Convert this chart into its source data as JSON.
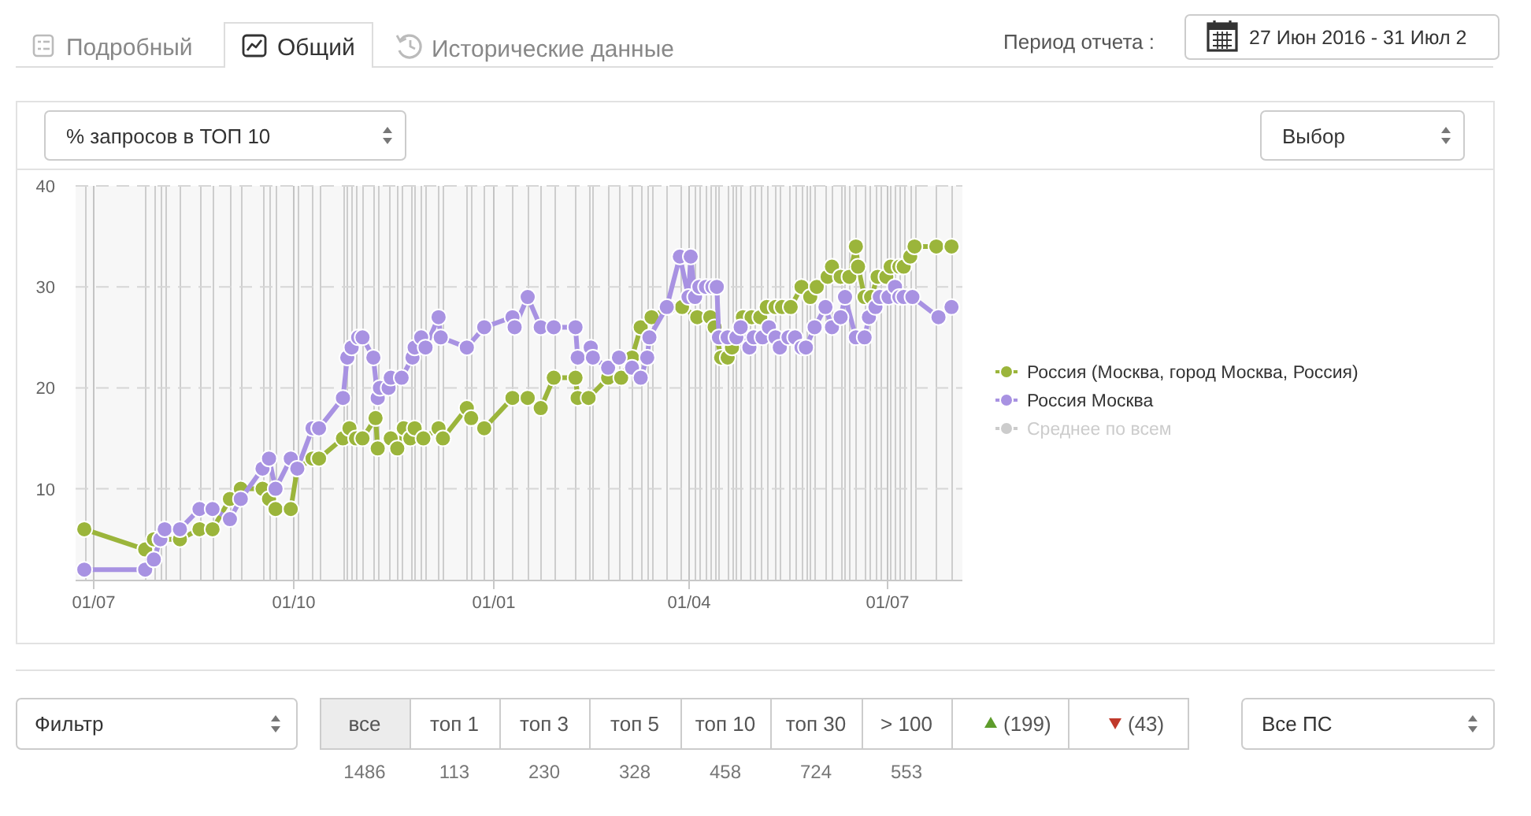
{
  "chart_data": {
    "type": "line",
    "annotations": [
      "Подробный",
      "Общий",
      "Исторические данные",
      "Период отчета :",
      "27 Июн 2016 - 31 Июл 2",
      "% запросов в ТОП 10",
      "Выбор",
      "Фильтр",
      "все",
      "топ 1",
      "топ 3",
      "топ 5",
      "топ 10",
      "топ 30",
      "> 100",
      "(199)",
      "(43)",
      "1486",
      "113",
      "230",
      "328",
      "458",
      "724",
      "553",
      "Все ПС"
    ],
    "xlim": [
      "2016-06-23",
      "2017-08-05"
    ],
    "xticks": [
      {
        "value": "2016-07-01",
        "label": "01/07"
      },
      {
        "value": "2016-10-01",
        "label": "01/10"
      },
      {
        "value": "2017-01-01",
        "label": "01/01"
      },
      {
        "value": "2017-04-01",
        "label": "01/04"
      },
      {
        "value": "2017-07-01",
        "label": "01/07"
      }
    ],
    "ylim": [
      1,
      40
    ],
    "yticks": [
      10,
      20,
      30,
      40
    ],
    "grid": true,
    "legend": "right",
    "marker": "circle",
    "line_style": "solid",
    "series": [
      {
        "name": "Россия (Москва, город Москва, Россия)",
        "color": "#9bb53b",
        "x": [
          "2016-06-27",
          "2016-07-25",
          "2016-07-29",
          "2016-08-01",
          "2016-08-10",
          "2016-08-19",
          "2016-08-25",
          "2016-09-02",
          "2016-09-07",
          "2016-09-17",
          "2016-09-20",
          "2016-09-23",
          "2016-09-30",
          "2016-10-03",
          "2016-10-10",
          "2016-10-13",
          "2016-10-24",
          "2016-10-27",
          "2016-10-30",
          "2016-11-02",
          "2016-11-08",
          "2016-11-09",
          "2016-11-15",
          "2016-11-18",
          "2016-11-21",
          "2016-11-24",
          "2016-11-26",
          "2016-11-30",
          "2016-12-07",
          "2016-12-09",
          "2016-12-20",
          "2016-12-22",
          "2016-12-28",
          "2017-01-10",
          "2017-01-17",
          "2017-01-23",
          "2017-01-29",
          "2017-02-08",
          "2017-02-09",
          "2017-02-14",
          "2017-02-23",
          "2017-03-01",
          "2017-03-06",
          "2017-03-10",
          "2017-03-15",
          "2017-03-23",
          "2017-03-29",
          "2017-04-05",
          "2017-04-11",
          "2017-04-13",
          "2017-04-16",
          "2017-04-19",
          "2017-04-21",
          "2017-04-26",
          "2017-04-30",
          "2017-05-04",
          "2017-05-07",
          "2017-05-11",
          "2017-05-14",
          "2017-05-18",
          "2017-05-23",
          "2017-05-27",
          "2017-05-30",
          "2017-06-04",
          "2017-06-06",
          "2017-06-10",
          "2017-06-14",
          "2017-06-17",
          "2017-06-18",
          "2017-06-21",
          "2017-06-24",
          "2017-06-27",
          "2017-07-01",
          "2017-07-03",
          "2017-07-07",
          "2017-07-09",
          "2017-07-12",
          "2017-07-14",
          "2017-07-24",
          "2017-07-31"
        ],
        "values": [
          6,
          4,
          5,
          5,
          5,
          6,
          6,
          9,
          10,
          10,
          9,
          8,
          8,
          12,
          13,
          13,
          15,
          16,
          15,
          15,
          17,
          14,
          15,
          14,
          16,
          15,
          16,
          15,
          16,
          15,
          18,
          17,
          16,
          19,
          19,
          18,
          21,
          21,
          19,
          19,
          21,
          21,
          23,
          26,
          27,
          28,
          28,
          27,
          27,
          26,
          23,
          23,
          24,
          27,
          27,
          27,
          28,
          28,
          28,
          28,
          30,
          29,
          30,
          31,
          32,
          31,
          31,
          34,
          32,
          29,
          29,
          31,
          31,
          32,
          32,
          32,
          33,
          34,
          34,
          34
        ]
      },
      {
        "name": "Россия Москва",
        "color": "#a892e2",
        "x": [
          "2016-06-27",
          "2016-07-25",
          "2016-07-29",
          "2016-08-01",
          "2016-08-03",
          "2016-08-10",
          "2016-08-19",
          "2016-08-25",
          "2016-09-02",
          "2016-09-07",
          "2016-09-17",
          "2016-09-20",
          "2016-09-23",
          "2016-09-30",
          "2016-10-03",
          "2016-10-10",
          "2016-10-13",
          "2016-10-24",
          "2016-10-26",
          "2016-10-28",
          "2016-10-31",
          "2016-11-02",
          "2016-11-07",
          "2016-11-09",
          "2016-11-10",
          "2016-11-14",
          "2016-11-15",
          "2016-11-20",
          "2016-11-25",
          "2016-11-26",
          "2016-11-29",
          "2016-12-01",
          "2016-12-07",
          "2016-12-08",
          "2016-12-20",
          "2016-12-28",
          "2017-01-10",
          "2017-01-11",
          "2017-01-17",
          "2017-01-23",
          "2017-01-29",
          "2017-02-08",
          "2017-02-09",
          "2017-02-15",
          "2017-02-16",
          "2017-02-23",
          "2017-02-28",
          "2017-03-06",
          "2017-03-10",
          "2017-03-13",
          "2017-03-14",
          "2017-03-22",
          "2017-03-28",
          "2017-04-01",
          "2017-04-02",
          "2017-04-04",
          "2017-04-06",
          "2017-04-09",
          "2017-04-12",
          "2017-04-14",
          "2017-04-15",
          "2017-04-19",
          "2017-04-23",
          "2017-04-25",
          "2017-04-29",
          "2017-05-01",
          "2017-05-05",
          "2017-05-08",
          "2017-05-11",
          "2017-05-13",
          "2017-05-17",
          "2017-05-20",
          "2017-05-23",
          "2017-05-25",
          "2017-05-29",
          "2017-06-03",
          "2017-06-06",
          "2017-06-10",
          "2017-06-12",
          "2017-06-17",
          "2017-06-21",
          "2017-06-23",
          "2017-06-26",
          "2017-06-28",
          "2017-07-02",
          "2017-07-05",
          "2017-07-07",
          "2017-07-09",
          "2017-07-13",
          "2017-07-25",
          "2017-07-31"
        ],
        "values": [
          2,
          2,
          3,
          5,
          6,
          6,
          8,
          8,
          7,
          9,
          12,
          13,
          10,
          13,
          12,
          16,
          16,
          19,
          23,
          24,
          25,
          25,
          23,
          19,
          20,
          20,
          21,
          21,
          23,
          24,
          25,
          24,
          27,
          25,
          24,
          26,
          27,
          26,
          29,
          26,
          26,
          26,
          23,
          24,
          23,
          22,
          23,
          22,
          21,
          23,
          25,
          28,
          33,
          29,
          33,
          29,
          30,
          30,
          30,
          30,
          25,
          25,
          25,
          26,
          24,
          25,
          25,
          26,
          25,
          24,
          25,
          25,
          24,
          24,
          26,
          28,
          26,
          27,
          29,
          25,
          25,
          27,
          28,
          29,
          29,
          30,
          29,
          29,
          29,
          27,
          28
        ]
      },
      {
        "name": "Среднее по всем",
        "color": "#cccccc"
      }
    ],
    "ref_lines": [
      {
        "axis": "x",
        "value": "2016-06-27"
      },
      {
        "axis": "x",
        "value": "2016-07-25"
      },
      {
        "axis": "x",
        "value": "2016-07-29"
      },
      {
        "axis": "x",
        "value": "2016-08-01"
      },
      {
        "axis": "x",
        "value": "2016-08-03"
      },
      {
        "axis": "x",
        "value": "2016-08-10"
      },
      {
        "axis": "x",
        "value": "2016-08-19"
      },
      {
        "axis": "x",
        "value": "2016-08-25"
      },
      {
        "axis": "x",
        "value": "2016-09-02"
      },
      {
        "axis": "x",
        "value": "2016-09-07"
      },
      {
        "axis": "x",
        "value": "2016-09-17"
      },
      {
        "axis": "x",
        "value": "2016-09-20"
      },
      {
        "axis": "x",
        "value": "2016-09-23"
      },
      {
        "axis": "x",
        "value": "2016-10-03"
      },
      {
        "axis": "x",
        "value": "2016-10-10"
      },
      {
        "axis": "x",
        "value": "2016-10-13"
      },
      {
        "axis": "x",
        "value": "2016-10-24"
      },
      {
        "axis": "x",
        "value": "2016-10-26"
      },
      {
        "axis": "x",
        "value": "2016-10-28"
      },
      {
        "axis": "x",
        "value": "2016-10-30"
      },
      {
        "axis": "x",
        "value": "2016-11-02"
      },
      {
        "axis": "x",
        "value": "2016-11-07"
      },
      {
        "axis": "x",
        "value": "2016-11-09"
      },
      {
        "axis": "x",
        "value": "2016-11-14"
      },
      {
        "axis": "x",
        "value": "2016-11-18"
      },
      {
        "axis": "x",
        "value": "2016-11-20"
      },
      {
        "axis": "x",
        "value": "2016-11-24"
      },
      {
        "axis": "x",
        "value": "2016-11-26"
      },
      {
        "axis": "x",
        "value": "2016-11-29"
      },
      {
        "axis": "x",
        "value": "2016-12-01"
      },
      {
        "axis": "x",
        "value": "2016-12-07"
      },
      {
        "axis": "x",
        "value": "2016-12-09"
      },
      {
        "axis": "x",
        "value": "2016-12-20"
      },
      {
        "axis": "x",
        "value": "2016-12-22"
      },
      {
        "axis": "x",
        "value": "2016-12-28"
      },
      {
        "axis": "x",
        "value": "2017-01-10"
      },
      {
        "axis": "x",
        "value": "2017-01-17"
      },
      {
        "axis": "x",
        "value": "2017-01-23"
      },
      {
        "axis": "x",
        "value": "2017-01-29"
      },
      {
        "axis": "x",
        "value": "2017-02-08"
      },
      {
        "axis": "x",
        "value": "2017-02-14"
      },
      {
        "axis": "x",
        "value": "2017-02-16"
      },
      {
        "axis": "x",
        "value": "2017-02-23"
      },
      {
        "axis": "x",
        "value": "2017-02-28"
      },
      {
        "axis": "x",
        "value": "2017-03-06"
      },
      {
        "axis": "x",
        "value": "2017-03-10"
      },
      {
        "axis": "x",
        "value": "2017-03-13"
      },
      {
        "axis": "x",
        "value": "2017-03-15"
      },
      {
        "axis": "x",
        "value": "2017-03-22"
      },
      {
        "axis": "x",
        "value": "2017-03-28"
      },
      {
        "axis": "x",
        "value": "2017-04-04"
      },
      {
        "axis": "x",
        "value": "2017-04-06"
      },
      {
        "axis": "x",
        "value": "2017-04-09"
      },
      {
        "axis": "x",
        "value": "2017-04-11"
      },
      {
        "axis": "x",
        "value": "2017-04-13"
      },
      {
        "axis": "x",
        "value": "2017-04-15"
      },
      {
        "axis": "x",
        "value": "2017-04-19"
      },
      {
        "axis": "x",
        "value": "2017-04-21"
      },
      {
        "axis": "x",
        "value": "2017-04-23"
      },
      {
        "axis": "x",
        "value": "2017-04-25"
      },
      {
        "axis": "x",
        "value": "2017-04-29"
      },
      {
        "axis": "x",
        "value": "2017-05-01"
      },
      {
        "axis": "x",
        "value": "2017-05-04"
      },
      {
        "axis": "x",
        "value": "2017-05-07"
      },
      {
        "axis": "x",
        "value": "2017-05-11"
      },
      {
        "axis": "x",
        "value": "2017-05-13"
      },
      {
        "axis": "x",
        "value": "2017-05-17"
      },
      {
        "axis": "x",
        "value": "2017-05-20"
      },
      {
        "axis": "x",
        "value": "2017-05-23"
      },
      {
        "axis": "x",
        "value": "2017-05-25"
      },
      {
        "axis": "x",
        "value": "2017-05-27"
      },
      {
        "axis": "x",
        "value": "2017-05-29"
      },
      {
        "axis": "x",
        "value": "2017-06-03"
      },
      {
        "axis": "x",
        "value": "2017-06-06"
      },
      {
        "axis": "x",
        "value": "2017-06-10"
      },
      {
        "axis": "x",
        "value": "2017-06-12"
      },
      {
        "axis": "x",
        "value": "2017-06-14"
      },
      {
        "axis": "x",
        "value": "2017-06-17"
      },
      {
        "axis": "x",
        "value": "2017-06-21"
      },
      {
        "axis": "x",
        "value": "2017-06-23"
      },
      {
        "axis": "x",
        "value": "2017-06-26"
      },
      {
        "axis": "x",
        "value": "2017-06-28"
      },
      {
        "axis": "x",
        "value": "2017-07-03"
      },
      {
        "axis": "x",
        "value": "2017-07-05"
      },
      {
        "axis": "x",
        "value": "2017-07-07"
      },
      {
        "axis": "x",
        "value": "2017-07-09"
      },
      {
        "axis": "x",
        "value": "2017-07-12"
      },
      {
        "axis": "x",
        "value": "2017-07-14"
      },
      {
        "axis": "x",
        "value": "2017-07-24"
      },
      {
        "axis": "x",
        "value": "2017-07-31"
      }
    ]
  }
}
